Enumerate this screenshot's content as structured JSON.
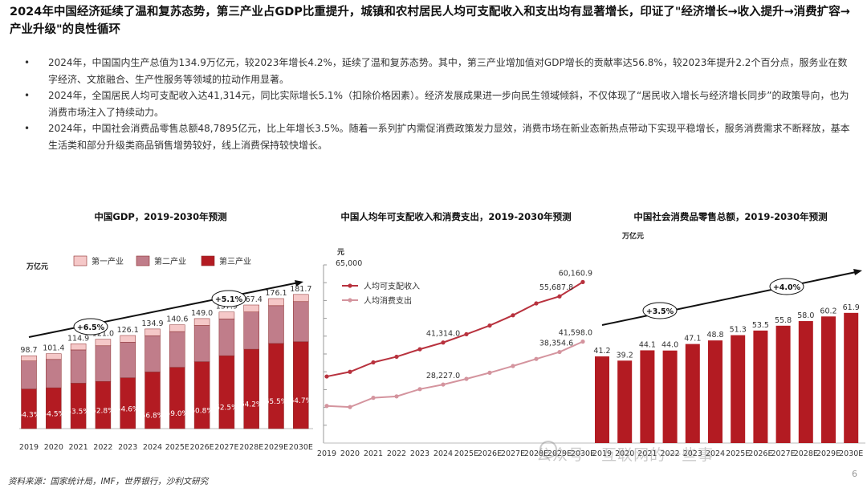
{
  "headline": "2024年中国经济延续了温和复苏态势，第三产业占GDP比重提升，城镇和农村居民人均可支配收入和支出均有显著增长，印证了\"经济增长→收入提升→消费扩容→产业升级\"的良性循环",
  "bullets": [
    "2024年，中国国内生产总值为134.9万亿元，较2023年增长4.2%，延续了温和复苏态势。其中，第三产业增加值对GDP增长的贡献率达56.8%，较2023年提升2.2个百分点，服务业在数字经济、文旅融合、生产性服务等领域的拉动作用显著。",
    "2024年，全国居民人均可支配收入达41,314元，同比实际增长5.1%（扣除价格因素）。经济发展成果进一步向民生领域倾斜，不仅体现了“居民收入增长与经济增长同步”的政策导向，也为消费市场注入了持续动力。",
    "2024年，中国社会消费品零售总额48,7895亿元，比上年增长3.5%。随着一系列扩内需促消费政策发力显效，消费市场在新业态新热点带动下实现平稳增长，服务消费需求不断释放，基本生活类和部分升级类商品销售增势较好，线上消费保持较快增长。"
  ],
  "colors": {
    "tertiary": "#b31b22",
    "secondary": "#c07d8a",
    "primary": "#f5c8c8",
    "income": "#b8323e",
    "spending": "#d4949e"
  },
  "chart_data": [
    {
      "type": "bar",
      "title": "中国GDP，2019-2030年预测",
      "unit_label": "万亿元",
      "stacked": true,
      "categories": [
        "2019",
        "2020",
        "2021",
        "2022",
        "2023",
        "2024",
        "2025E",
        "2026E",
        "2027E",
        "2028E",
        "2029E",
        "2030E"
      ],
      "totals": [
        "98.7",
        "101.4",
        "114.9",
        "121.0",
        "126.1",
        "134.9",
        "140.6",
        "149.0",
        "157.9",
        "167.4",
        "176.1",
        "181.7"
      ],
      "tertiary_share_labels": [
        "54.3%",
        "54.5%",
        "53.5%",
        "52.8%",
        "54.6%",
        "56.8%",
        "59.0%",
        "60.8%",
        "62.5%",
        "64.2%",
        "65.5%",
        "64.7%"
      ],
      "series": [
        {
          "name": "第一产业",
          "values": [
            7.1,
            7.7,
            8.3,
            8.8,
            9.0,
            9.1,
            9.2,
            9.3,
            9.4,
            9.5,
            9.6,
            9.7
          ]
        },
        {
          "name": "第二产业",
          "values": [
            38.0,
            38.4,
            45.1,
            48.3,
            48.3,
            49.1,
            48.4,
            49.1,
            49.8,
            50.4,
            51.2,
            54.4
          ]
        },
        {
          "name": "第三产业",
          "values": [
            53.6,
            55.3,
            61.5,
            63.9,
            68.8,
            76.7,
            83.0,
            90.6,
            98.7,
            107.5,
            115.3,
            117.6
          ]
        }
      ],
      "ylim": [
        0,
        200
      ],
      "growth_annotations": [
        "+6.5%",
        "+5.1%"
      ]
    },
    {
      "type": "line",
      "title": "中国人均年可支配收入和消费支出，2019-2030年预测",
      "unit_label": "元",
      "ytop_label": "65,000",
      "categories": [
        "2019",
        "2020",
        "2021",
        "2022",
        "2023",
        "2024",
        "2025E",
        "2026E",
        "2027E",
        "2028E",
        "2029E",
        "2030E"
      ],
      "series": [
        {
          "name": "人均可支配收入",
          "values": [
            30733,
            32189,
            35128,
            36883,
            39218,
            41314,
            43900,
            46600,
            49800,
            53500,
            55688,
            60161
          ]
        },
        {
          "name": "人均消费支出",
          "values": [
            21559,
            21210,
            24100,
            24538,
            26796,
            28227,
            30000,
            31900,
            34000,
            36200,
            38355,
            41598
          ]
        }
      ],
      "data_labels": [
        {
          "series": 0,
          "index": 5,
          "text": "41,314.0"
        },
        {
          "series": 0,
          "index": 10,
          "text": "55,687.8"
        },
        {
          "series": 0,
          "index": 11,
          "text": "60,160.9"
        },
        {
          "series": 1,
          "index": 5,
          "text": "28,227.0"
        },
        {
          "series": 1,
          "index": 10,
          "text": "38,354.6"
        },
        {
          "series": 1,
          "index": 11,
          "text": "41,598.0"
        }
      ],
      "ylim": [
        10000,
        65000
      ]
    },
    {
      "type": "bar",
      "title": "中国社会消费品零售总额，2019-2030年预测",
      "unit_label": "万亿元",
      "categories": [
        "2019",
        "2020",
        "2021",
        "2022",
        "2023",
        "2024",
        "2025E",
        "2026E",
        "2027E",
        "2028E",
        "2029E",
        "2030E"
      ],
      "values": [
        41.2,
        39.2,
        44.1,
        44.0,
        47.1,
        48.8,
        51.3,
        53.5,
        55.8,
        58.0,
        60.2,
        61.9
      ],
      "value_labels": [
        "41.2",
        "39.2",
        "44.1",
        "44.0",
        "47.1",
        "48.8",
        "51.3",
        "53.5",
        "55.8",
        "58.0",
        "60.2",
        "61.9"
      ],
      "ylim": [
        0,
        80
      ],
      "growth_annotations": [
        "+3.5%",
        "+4.0%"
      ]
    }
  ],
  "footer": "资料来源：国家统计局，IMF，世界银行，沙利文研究",
  "page_number": "6",
  "watermark": "公众号 · 互联网的一些事"
}
